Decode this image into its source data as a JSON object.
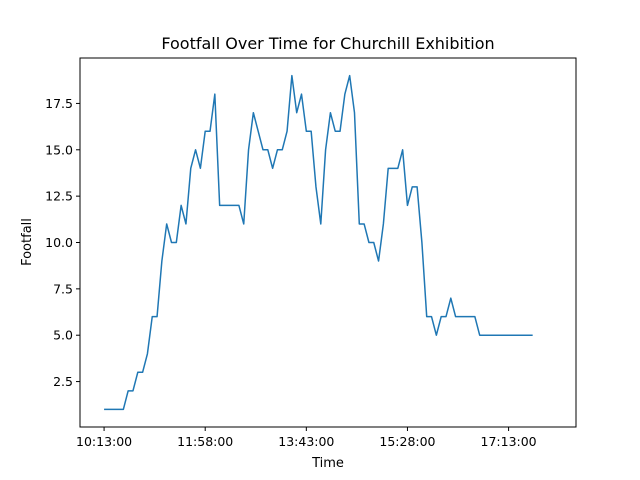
{
  "chart_data": {
    "type": "line",
    "title": "Footfall Over Time for Churchill Exhibition",
    "xlabel": "Time",
    "ylabel": "Footfall",
    "x_start": "10:13:00",
    "x_step_minutes": 5,
    "x_ticks": [
      "10:13:00",
      "11:58:00",
      "13:43:00",
      "15:28:00",
      "17:13:00"
    ],
    "y_ticks": [
      "2.5",
      "5.0",
      "7.5",
      "10.0",
      "12.5",
      "15.0",
      "17.5"
    ],
    "xlim": [
      "09:48:00",
      "18:23:00"
    ],
    "ylim": [
      0.05,
      19.95
    ],
    "grid": false,
    "legend": "none",
    "colors": {
      "series": "#1f77b4"
    },
    "series": [
      {
        "values": [
          1,
          1,
          1,
          1,
          1,
          2,
          2,
          3,
          3,
          4,
          6,
          6,
          9,
          11,
          10,
          10,
          12,
          11,
          14,
          15,
          14,
          16,
          16,
          18,
          12,
          12,
          12,
          12,
          12,
          11,
          15,
          17,
          16,
          15,
          15,
          14,
          15,
          15,
          16,
          19,
          17,
          18,
          16,
          16,
          13,
          11,
          15,
          17,
          16,
          16,
          18,
          19,
          17,
          11,
          11,
          10,
          10,
          9,
          11,
          14,
          14,
          14,
          15,
          12,
          13,
          13,
          10,
          6,
          6,
          5,
          6,
          6,
          7,
          6,
          6,
          6,
          6,
          6,
          5,
          5,
          5,
          5,
          5,
          5,
          5,
          5,
          5,
          5,
          5,
          5
        ]
      }
    ]
  }
}
